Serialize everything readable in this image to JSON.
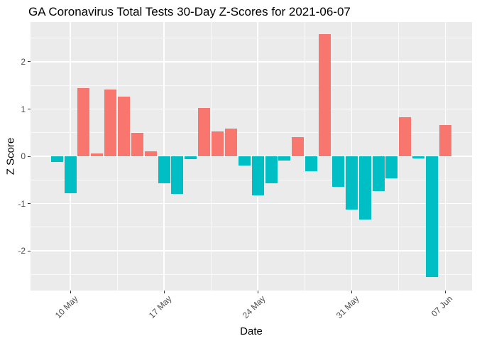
{
  "chart_data": {
    "type": "bar",
    "title": "GA Coronavirus Total Tests 30-Day Z-Scores for 2021-06-07",
    "xlabel": "Date",
    "ylabel": "Z Score",
    "x": [
      "2021-05-09",
      "2021-05-10",
      "2021-05-11",
      "2021-05-12",
      "2021-05-13",
      "2021-05-14",
      "2021-05-15",
      "2021-05-16",
      "2021-05-17",
      "2021-05-18",
      "2021-05-19",
      "2021-05-20",
      "2021-05-21",
      "2021-05-22",
      "2021-05-23",
      "2021-05-24",
      "2021-05-25",
      "2021-05-26",
      "2021-05-27",
      "2021-05-28",
      "2021-05-29",
      "2021-05-30",
      "2021-05-31",
      "2021-06-01",
      "2021-06-02",
      "2021-06-03",
      "2021-06-04",
      "2021-06-05",
      "2021-06-06",
      "2021-06-07"
    ],
    "values": [
      -0.12,
      -0.78,
      1.44,
      0.06,
      1.42,
      1.27,
      0.5,
      0.1,
      -0.57,
      -0.79,
      -0.06,
      1.03,
      0.53,
      0.58,
      -0.2,
      -0.82,
      -0.57,
      -0.09,
      0.4,
      -0.32,
      2.58,
      -0.64,
      -1.12,
      -1.34,
      -0.74,
      -0.46,
      0.82,
      -0.04,
      -2.56,
      0.66
    ],
    "x_tick_labels": [
      "10 May",
      "17 May",
      "24 May",
      "31 May",
      "07 Jun"
    ],
    "x_tick_day_index": [
      1,
      8,
      15,
      22,
      29
    ],
    "x_minor_day_index": [
      4.5,
      11.5,
      18.5,
      25.5
    ],
    "y_ticks": [
      2,
      1,
      0,
      -1,
      -2
    ],
    "y_tick_labels": [
      "2",
      "1",
      "0",
      "-1",
      "-2"
    ],
    "y_minor_ticks": [
      2.5,
      1.5,
      0.5,
      -0.5,
      -1.5,
      -2.5
    ],
    "ylim": [
      -2.84,
      2.84
    ],
    "grid": true,
    "legend_position": "none",
    "colors": {
      "positive_bar": "#F8766D",
      "negative_bar": "#00BFC4",
      "panel_bg": "#EBEBEB",
      "grid": "#FFFFFF",
      "tick_label": "#4D4D4D",
      "tick_mark": "#333333",
      "text": "#000000",
      "figure_bg": "#FFFFFF"
    }
  }
}
